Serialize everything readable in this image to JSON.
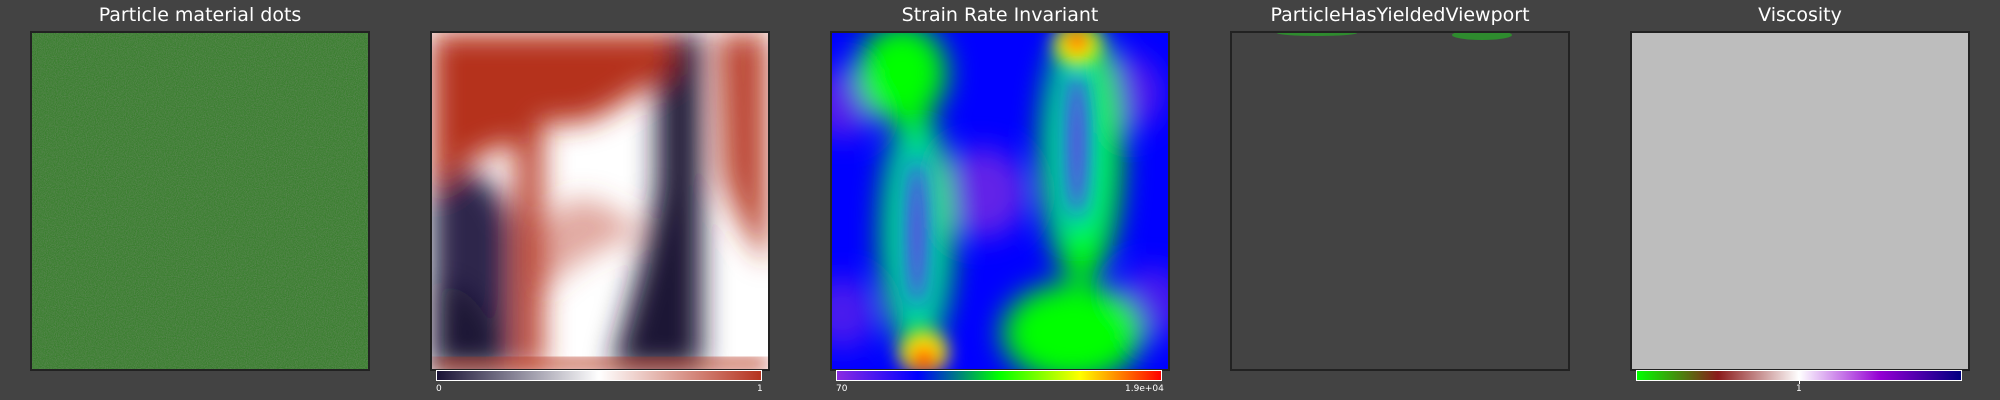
{
  "panels": [
    {
      "title": "Particle material dots"
    },
    {
      "title": ""
    },
    {
      "title": "Strain Rate Invariant"
    },
    {
      "title": "ParticleHasYieldedViewport"
    },
    {
      "title": "Viscosity"
    }
  ],
  "colorbars": {
    "velocity": {
      "min_label": "0",
      "max_label": "1",
      "colors": [
        "#1a1336",
        "#ffffff",
        "#b5331f"
      ]
    },
    "strain_rate": {
      "min_label": "70",
      "max_label": "1.9e+04",
      "colors": [
        "#8a2be2",
        "#0000ff",
        "#00ff00",
        "#ffff00",
        "#ff0000"
      ]
    },
    "viscosity": {
      "tick_label": "1",
      "colors": [
        "#00ff00",
        "#8b1a1a",
        "#ffffff",
        "#9400d3",
        "#000080"
      ]
    }
  },
  "colors": {
    "background": "#434343",
    "material_dots": "#3a7f2f",
    "viscosity_fill": "#bdbdbd",
    "yielded_points": "#2e8b2e"
  }
}
